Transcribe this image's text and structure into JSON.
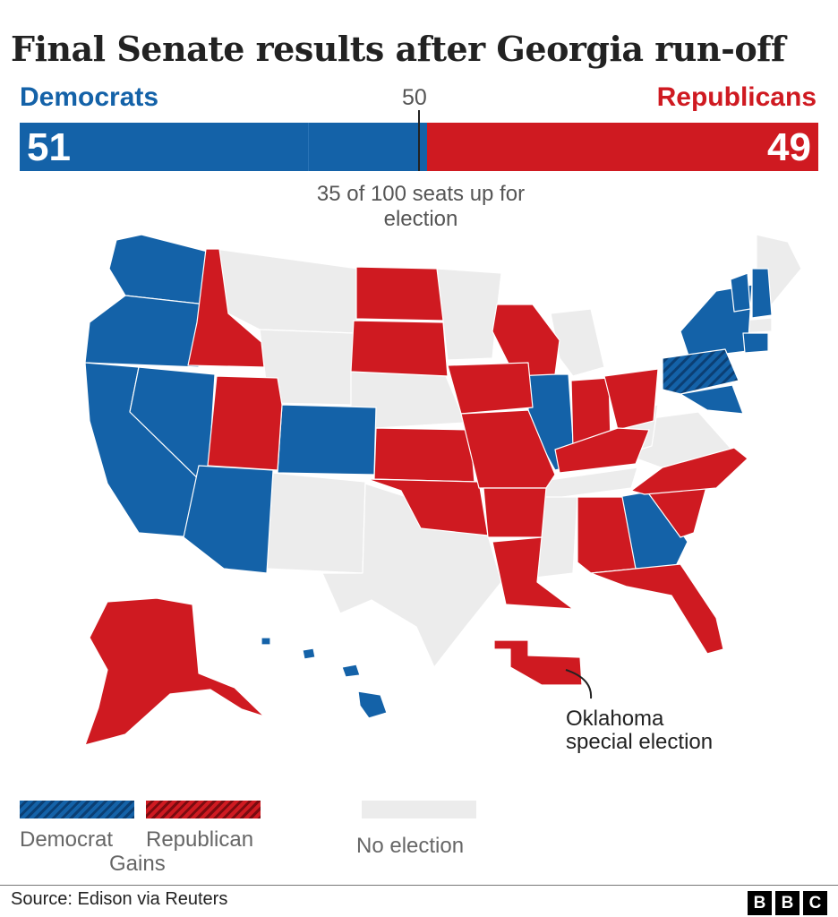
{
  "title": "Final Senate results after Georgia run-off",
  "bar": {
    "dem_label": "Democrats",
    "rep_label": "Republicans",
    "majority_label": "50",
    "dem_seats": "51",
    "rep_seats": "49",
    "total_seats": 100
  },
  "note": "35 of 100 seats up for election",
  "annotation": {
    "line1": "Oklahoma",
    "line2": "special election"
  },
  "legend": {
    "democrat": "Democrat",
    "republican": "Republican",
    "gains": "Gains",
    "no_election": "No election"
  },
  "source": "Source: Edison via Reuters",
  "logo": [
    "B",
    "B",
    "C"
  ],
  "colors": {
    "democrat": "#1462a8",
    "republican": "#cf1a21",
    "no_election": "#ececec"
  },
  "map": {
    "democrat_states": [
      "Washington",
      "Oregon",
      "California",
      "Nevada",
      "Arizona",
      "Colorado",
      "Illinois",
      "New York",
      "Vermont",
      "New Hampshire",
      "Connecticut",
      "Maryland",
      "Georgia",
      "Hawaii"
    ],
    "republican_states": [
      "Idaho",
      "Utah",
      "North Dakota",
      "South Dakota",
      "Wisconsin",
      "Iowa",
      "Kansas",
      "Oklahoma",
      "Missouri",
      "Arkansas",
      "Louisiana",
      "Alabama",
      "Florida",
      "South Carolina",
      "North Carolina",
      "Kentucky",
      "Indiana",
      "Ohio",
      "Alaska"
    ],
    "democrat_gains": [
      "Pennsylvania"
    ],
    "republican_gains": []
  }
}
